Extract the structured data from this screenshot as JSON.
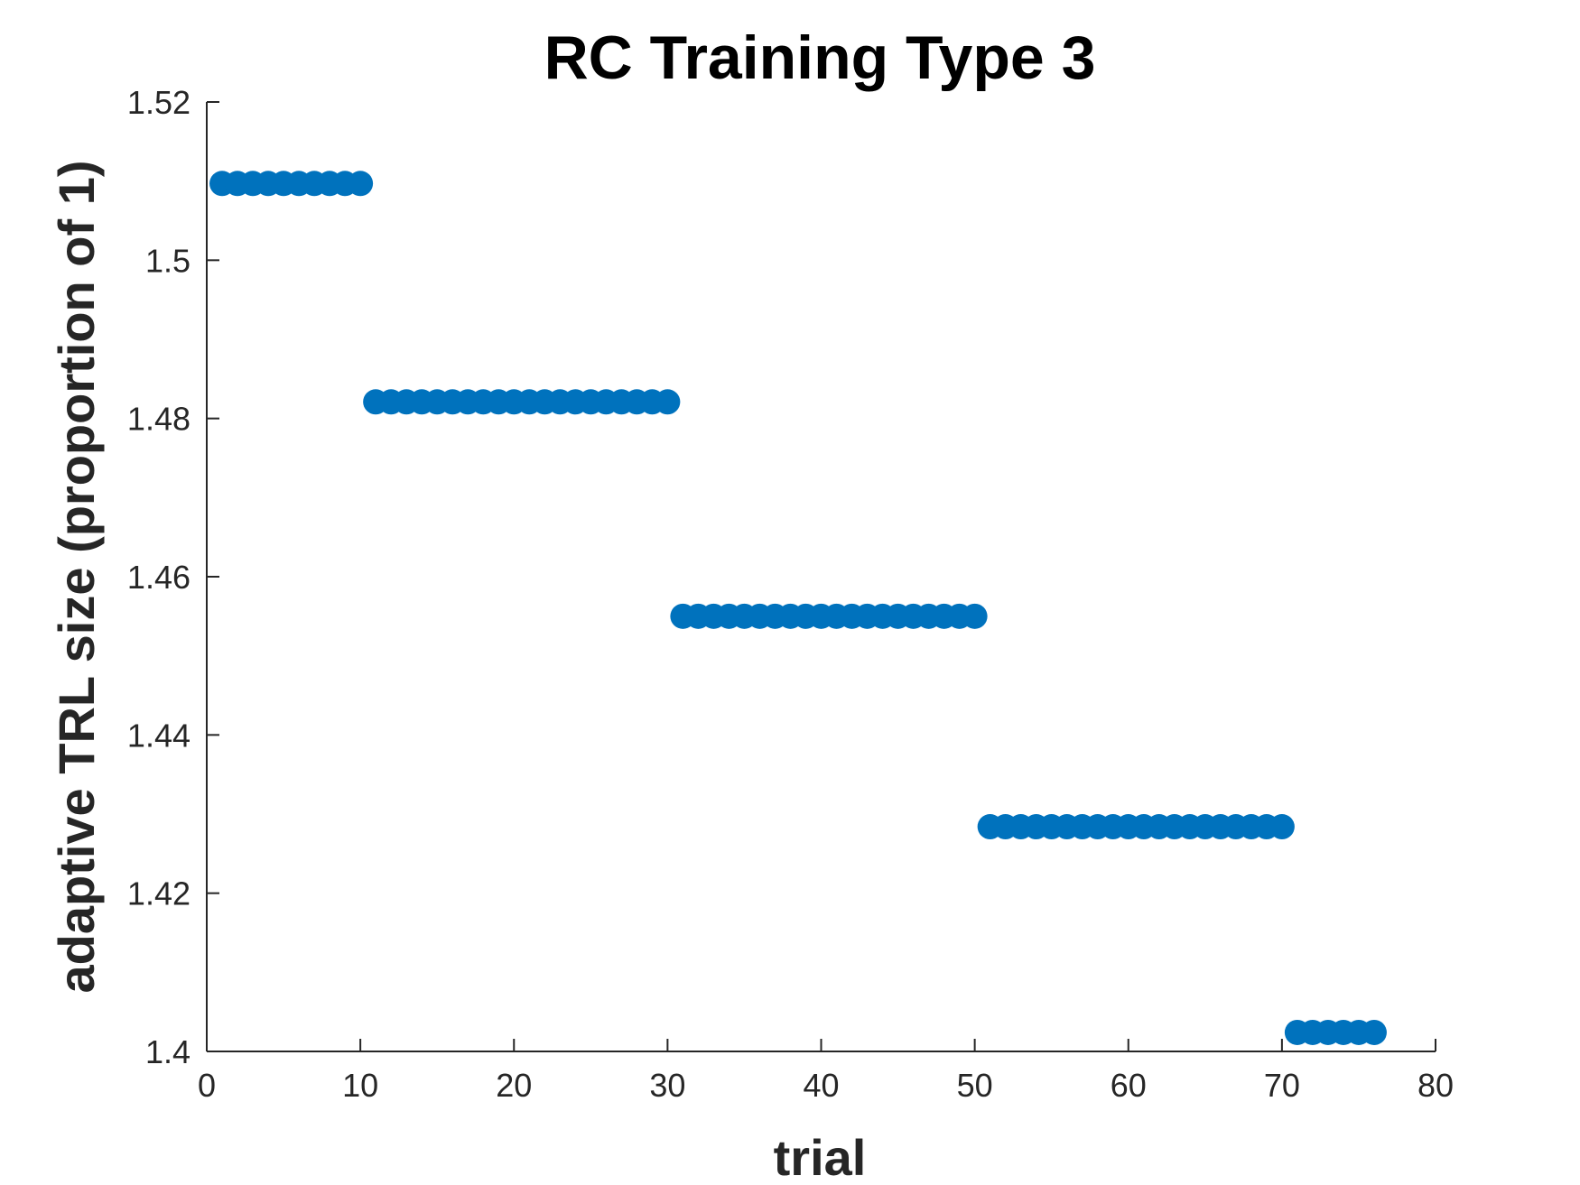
{
  "chart_data": {
    "type": "scatter",
    "title": "RC Training Type 3",
    "xlabel": "trial",
    "ylabel": "adaptive TRL size (proportion of 1)",
    "xlim": [
      0,
      80
    ],
    "ylim": [
      1.4,
      1.52
    ],
    "xticks": [
      0,
      10,
      20,
      30,
      40,
      50,
      60,
      70,
      80
    ],
    "xtick_labels": [
      "0",
      "10",
      "20",
      "30",
      "40",
      "50",
      "60",
      "70",
      "80"
    ],
    "yticks": [
      1.4,
      1.42,
      1.44,
      1.46,
      1.48,
      1.5,
      1.52
    ],
    "ytick_labels": [
      "1.4",
      "1.42",
      "1.44",
      "1.46",
      "1.48",
      "1.5",
      "1.52"
    ],
    "grid": false,
    "marker_color": "#0072BD",
    "series": [
      {
        "x": [
          1,
          2,
          3,
          4,
          5,
          6,
          7,
          8,
          9,
          10,
          11,
          12,
          13,
          14,
          15,
          16,
          17,
          18,
          19,
          20,
          21,
          22,
          23,
          24,
          25,
          26,
          27,
          28,
          29,
          30,
          31,
          32,
          33,
          34,
          35,
          36,
          37,
          38,
          39,
          40,
          41,
          42,
          43,
          44,
          45,
          46,
          47,
          48,
          49,
          50,
          51,
          52,
          53,
          54,
          55,
          56,
          57,
          58,
          59,
          60,
          61,
          62,
          63,
          64,
          65,
          66,
          67,
          68,
          69,
          70,
          71,
          72,
          73,
          74,
          75,
          76
        ],
        "y": [
          1.5097,
          1.5097,
          1.5097,
          1.5097,
          1.5097,
          1.5097,
          1.5097,
          1.5097,
          1.5097,
          1.5097,
          1.4821,
          1.4821,
          1.4821,
          1.4821,
          1.4821,
          1.4821,
          1.4821,
          1.4821,
          1.4821,
          1.4821,
          1.4821,
          1.4821,
          1.4821,
          1.4821,
          1.4821,
          1.4821,
          1.4821,
          1.4821,
          1.4821,
          1.4821,
          1.455,
          1.455,
          1.455,
          1.455,
          1.455,
          1.455,
          1.455,
          1.455,
          1.455,
          1.455,
          1.455,
          1.455,
          1.455,
          1.455,
          1.455,
          1.455,
          1.455,
          1.455,
          1.455,
          1.455,
          1.4284,
          1.4284,
          1.4284,
          1.4284,
          1.4284,
          1.4284,
          1.4284,
          1.4284,
          1.4284,
          1.4284,
          1.4284,
          1.4284,
          1.4284,
          1.4284,
          1.4284,
          1.4284,
          1.4284,
          1.4284,
          1.4284,
          1.4284,
          1.4024,
          1.4024,
          1.4024,
          1.4024,
          1.4024,
          1.4024
        ]
      }
    ]
  }
}
